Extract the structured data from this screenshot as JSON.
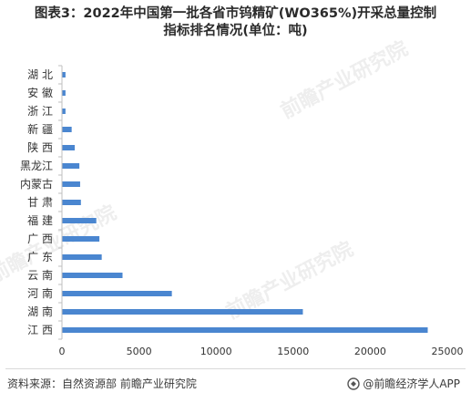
{
  "header": {
    "title_line1": "图表3：2022年中国第一批各省市钨精矿(WO365%)开采总量控制",
    "title_line2": "指标排名情况(单位：吨)"
  },
  "footer": {
    "source": "资料来源：自然资源部 前瞻产业研究院",
    "brand": "@前瞻经济学人APP"
  },
  "watermark": "前瞻产业研究院",
  "colors": {
    "bar": "#4a86d0",
    "axis": "#bfbfbf",
    "text": "#333333"
  },
  "chart_data": {
    "type": "bar",
    "orientation": "horizontal",
    "categories": [
      "湖 北",
      "安 徽",
      "浙 江",
      "新 疆",
      "陕 西",
      "黑龙江",
      "内蒙古",
      "甘 肃",
      "福 建",
      "广 西",
      "广 东",
      "云 南",
      "河 南",
      "湖 南",
      "江 西"
    ],
    "values": [
      200,
      200,
      200,
      600,
      800,
      1100,
      1150,
      1200,
      2200,
      2400,
      2550,
      3900,
      7100,
      15600,
      23700
    ],
    "xlim": [
      0,
      25000
    ],
    "xticks": [
      "0",
      "5000",
      "10000",
      "15000",
      "20000",
      "25000"
    ],
    "xtick_values": [
      0,
      5000,
      10000,
      15000,
      20000,
      25000
    ],
    "title": "",
    "xlabel": "",
    "ylabel": "",
    "grid": false
  }
}
